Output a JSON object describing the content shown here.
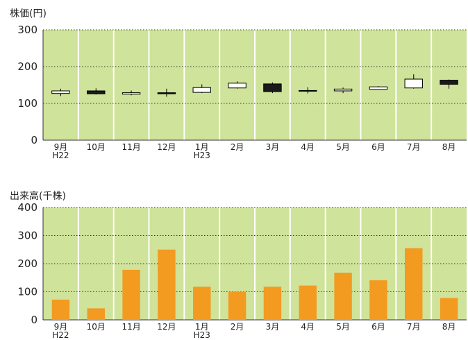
{
  "chart_data": [
    {
      "type": "candlestick",
      "title": "株価(円)",
      "ylim": [
        0,
        300
      ],
      "yticks": [
        0,
        100,
        200,
        300
      ],
      "grid": true,
      "categories": [
        "9月",
        "10月",
        "11月",
        "12月",
        "1月",
        "2月",
        "3月",
        "4月",
        "5月",
        "6月",
        "7月",
        "8月"
      ],
      "sublabels": [
        "H22",
        "",
        "",
        "",
        "H23",
        "",
        "",
        "",
        "",
        "",
        "",
        ""
      ],
      "candles": [
        {
          "open": 127,
          "close": 134,
          "high": 140,
          "low": 120
        },
        {
          "open": 134,
          "close": 126,
          "high": 141,
          "low": 124
        },
        {
          "open": 125,
          "close": 129,
          "high": 135,
          "low": 122
        },
        {
          "open": 129,
          "close": 126,
          "high": 140,
          "low": 118
        },
        {
          "open": 130,
          "close": 143,
          "high": 152,
          "low": 128
        },
        {
          "open": 142,
          "close": 155,
          "high": 160,
          "low": 140
        },
        {
          "open": 153,
          "close": 132,
          "high": 157,
          "low": 128
        },
        {
          "open": 135,
          "close": 135,
          "high": 144,
          "low": 127
        },
        {
          "open": 134,
          "close": 139,
          "high": 143,
          "low": 128
        },
        {
          "open": 138,
          "close": 145,
          "high": 147,
          "low": 137
        },
        {
          "open": 142,
          "close": 166,
          "high": 179,
          "low": 140
        },
        {
          "open": 163,
          "close": 152,
          "high": 165,
          "low": 140
        }
      ]
    },
    {
      "type": "bar",
      "title": "出来高(千株)",
      "ylim": [
        0,
        400
      ],
      "yticks": [
        0,
        100,
        200,
        300,
        400
      ],
      "grid": true,
      "categories": [
        "9月",
        "10月",
        "11月",
        "12月",
        "1月",
        "2月",
        "3月",
        "4月",
        "5月",
        "6月",
        "7月",
        "8月"
      ],
      "sublabels": [
        "H22",
        "",
        "",
        "",
        "H23",
        "",
        "",
        "",
        "",
        "",
        "",
        ""
      ],
      "values": [
        72,
        41,
        178,
        250,
        118,
        100,
        118,
        122,
        168,
        141,
        255,
        78
      ]
    }
  ],
  "colors": {
    "plot_bg": "#cfe39a",
    "divider": "#ffffff",
    "grid": "#333333",
    "bar": "#f39a21",
    "candle_up": "#ffffff",
    "candle_down": "#1a1a1a",
    "outline": "#000000"
  }
}
